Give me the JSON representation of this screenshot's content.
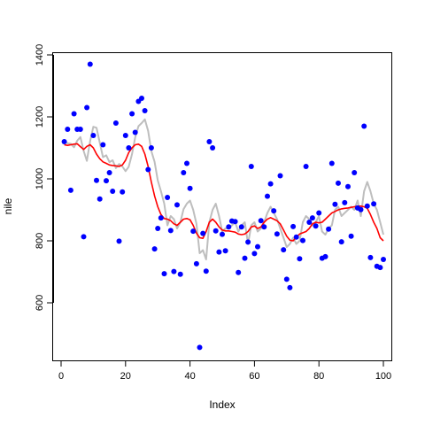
{
  "chart_data": {
    "type": "scatter",
    "title": "",
    "xlabel": "Index",
    "ylabel": "nile",
    "xlim": [
      0,
      100
    ],
    "ylim": [
      400,
      1400
    ],
    "x_ticks": [
      0,
      20,
      40,
      60,
      80,
      100
    ],
    "y_ticks": [
      600,
      800,
      1000,
      1200,
      1400
    ],
    "x_tick_labels": [
      "0",
      "20",
      "40",
      "60",
      "80",
      "100"
    ],
    "y_tick_labels": [
      "600",
      "800",
      "1000",
      "1200",
      "1400"
    ],
    "grid": false,
    "legend": "none",
    "points": {
      "name": "",
      "color": "#0000ff",
      "x": [
        1,
        2,
        3,
        4,
        5,
        6,
        7,
        8,
        9,
        10,
        11,
        12,
        13,
        14,
        15,
        16,
        17,
        18,
        19,
        20,
        21,
        22,
        23,
        24,
        25,
        26,
        27,
        28,
        29,
        30,
        31,
        32,
        33,
        34,
        35,
        36,
        37,
        38,
        39,
        40,
        41,
        42,
        43,
        44,
        45,
        46,
        47,
        48,
        49,
        50,
        51,
        52,
        53,
        54,
        55,
        56,
        57,
        58,
        59,
        60,
        61,
        62,
        63,
        64,
        65,
        66,
        67,
        68,
        69,
        70,
        71,
        72,
        73,
        74,
        75,
        76,
        77,
        78,
        79,
        80,
        81,
        82,
        83,
        84,
        85,
        86,
        87,
        88,
        89,
        90,
        91,
        92,
        93,
        94,
        95,
        96,
        97,
        98,
        99,
        100
      ],
      "y": [
        1120,
        1160,
        963,
        1210,
        1160,
        1160,
        813,
        1230,
        1370,
        1140,
        995,
        935,
        1110,
        994,
        1020,
        960,
        1180,
        799,
        958,
        1140,
        1100,
        1210,
        1150,
        1250,
        1260,
        1220,
        1030,
        1100,
        774,
        840,
        874,
        694,
        940,
        833,
        701,
        916,
        692,
        1020,
        1050,
        969,
        831,
        726,
        456,
        824,
        702,
        1120,
        1100,
        832,
        764,
        821,
        768,
        845,
        864,
        862,
        698,
        845,
        744,
        796,
        1040,
        759,
        781,
        865,
        845,
        944,
        984,
        897,
        822,
        1010,
        771,
        676,
        649,
        846,
        812,
        742,
        801,
        1040,
        860,
        874,
        848,
        890,
        744,
        749,
        838,
        1050,
        918,
        986,
        797,
        923,
        975,
        815,
        1020,
        906,
        901,
        1170,
        912,
        746,
        919,
        718,
        714,
        740
      ]
    },
    "series": [
      {
        "name": "",
        "color": "#bebebe",
        "x": [
          1,
          2,
          3,
          4,
          5,
          6,
          7,
          8,
          9,
          10,
          11,
          12,
          13,
          14,
          15,
          16,
          17,
          18,
          19,
          20,
          21,
          22,
          23,
          24,
          25,
          26,
          27,
          28,
          29,
          30,
          31,
          32,
          33,
          34,
          35,
          36,
          37,
          38,
          39,
          40,
          41,
          42,
          43,
          44,
          45,
          46,
          47,
          48,
          49,
          50,
          51,
          52,
          53,
          54,
          55,
          56,
          57,
          58,
          59,
          60,
          61,
          62,
          63,
          64,
          65,
          66,
          67,
          68,
          69,
          70,
          71,
          72,
          73,
          74,
          75,
          76,
          77,
          78,
          79,
          80,
          81,
          82,
          83,
          84,
          85,
          86,
          87,
          88,
          89,
          90,
          91,
          92,
          93,
          94,
          95,
          96,
          97,
          98,
          99,
          100
        ],
        "y": [
          1120,
          1115,
          1113,
          1102,
          1123,
          1135,
          1090,
          1058,
          1122,
          1168,
          1165,
          1117,
          1070,
          1076,
          1054,
          1060,
          1035,
          1048,
          1040,
          1025,
          1039,
          1080,
          1134,
          1170,
          1180,
          1192,
          1155,
          1090,
          1055,
          995,
          960,
          920,
          850,
          880,
          870,
          840,
          860,
          902,
          920,
          930,
          900,
          855,
          760,
          770,
          740,
          860,
          900,
          920,
          880,
          830,
          840,
          840,
          850,
          860,
          830,
          850,
          860,
          790,
          850,
          860,
          830,
          840,
          860,
          890,
          910,
          890,
          870,
          840,
          810,
          780,
          790,
          810,
          790,
          800,
          860,
          880,
          870,
          850,
          860,
          880,
          830,
          820,
          840,
          850,
          900,
          910,
          880,
          890,
          900,
          910,
          900,
          930,
          880,
          960,
          990,
          960,
          920,
          900,
          860,
          820
        ]
      },
      {
        "name": "",
        "color": "#ff0000",
        "x": [
          1,
          2,
          3,
          4,
          5,
          6,
          7,
          8,
          9,
          10,
          11,
          12,
          13,
          14,
          15,
          16,
          17,
          18,
          19,
          20,
          21,
          22,
          23,
          24,
          25,
          26,
          27,
          28,
          29,
          30,
          31,
          32,
          33,
          34,
          35,
          36,
          37,
          38,
          39,
          40,
          41,
          42,
          43,
          44,
          45,
          46,
          47,
          48,
          49,
          50,
          51,
          52,
          53,
          54,
          55,
          56,
          57,
          58,
          59,
          60,
          61,
          62,
          63,
          64,
          65,
          66,
          67,
          68,
          69,
          70,
          71,
          72,
          73,
          74,
          75,
          76,
          77,
          78,
          79,
          80,
          81,
          82,
          83,
          84,
          85,
          86,
          87,
          88,
          89,
          90,
          91,
          92,
          93,
          94,
          95,
          96,
          97,
          98,
          99,
          100
        ],
        "y": [
          1110,
          1108,
          1110,
          1112,
          1113,
          1104,
          1095,
          1105,
          1110,
          1100,
          1080,
          1065,
          1055,
          1050,
          1045,
          1043,
          1042,
          1040,
          1045,
          1060,
          1085,
          1100,
          1110,
          1112,
          1105,
          1080,
          1040,
          990,
          945,
          910,
          885,
          872,
          870,
          865,
          855,
          850,
          860,
          870,
          872,
          868,
          850,
          825,
          810,
          808,
          830,
          860,
          870,
          860,
          845,
          835,
          832,
          832,
          830,
          828,
          822,
          820,
          822,
          830,
          845,
          848,
          840,
          845,
          860,
          870,
          875,
          870,
          865,
          855,
          835,
          815,
          802,
          800,
          812,
          822,
          826,
          830,
          840,
          855,
          860,
          858,
          860,
          870,
          880,
          890,
          895,
          900,
          903,
          905,
          906,
          908,
          910,
          912,
          912,
          910,
          905,
          885,
          860,
          840,
          810,
          800
        ]
      }
    ]
  }
}
